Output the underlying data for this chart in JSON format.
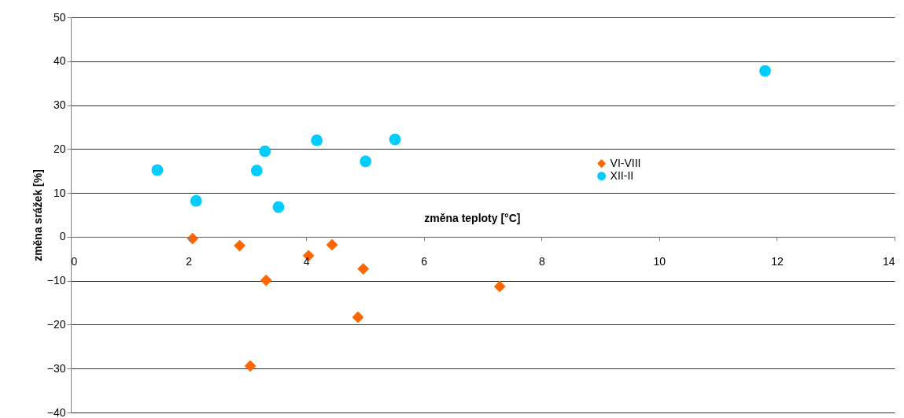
{
  "chart_data": {
    "type": "scatter",
    "xlabel": "změna teploty [°C]",
    "ylabel": "změna srážek [%]",
    "xlim": [
      0,
      14
    ],
    "xticks": [
      0,
      2,
      4,
      6,
      8,
      10,
      12,
      14
    ],
    "ylim": [
      -40,
      50
    ],
    "yticks": [
      -40,
      -30,
      -20,
      -10,
      0,
      10,
      20,
      30,
      40,
      50
    ],
    "grid": "y",
    "legend": "right",
    "series": [
      {
        "name": "VI-VIII",
        "color": "#ff6600",
        "marker": "diamond",
        "x": [
          2.07,
          2.87,
          3.32,
          3.05,
          4.04,
          4.44,
          4.97,
          4.88,
          7.29
        ],
        "values": [
          -0.4,
          -2.0,
          -9.9,
          -29.4,
          -4.3,
          -1.8,
          -7.3,
          -18.3,
          -11.3
        ]
      },
      {
        "name": "XII-II",
        "color": "#00ccff",
        "marker": "circle",
        "x": [
          1.47,
          2.13,
          3.16,
          3.3,
          3.53,
          4.18,
          5.01,
          5.51,
          11.8
        ],
        "values": [
          15.2,
          8.2,
          15.1,
          19.5,
          6.8,
          22.0,
          17.2,
          22.2,
          37.8
        ]
      }
    ]
  }
}
